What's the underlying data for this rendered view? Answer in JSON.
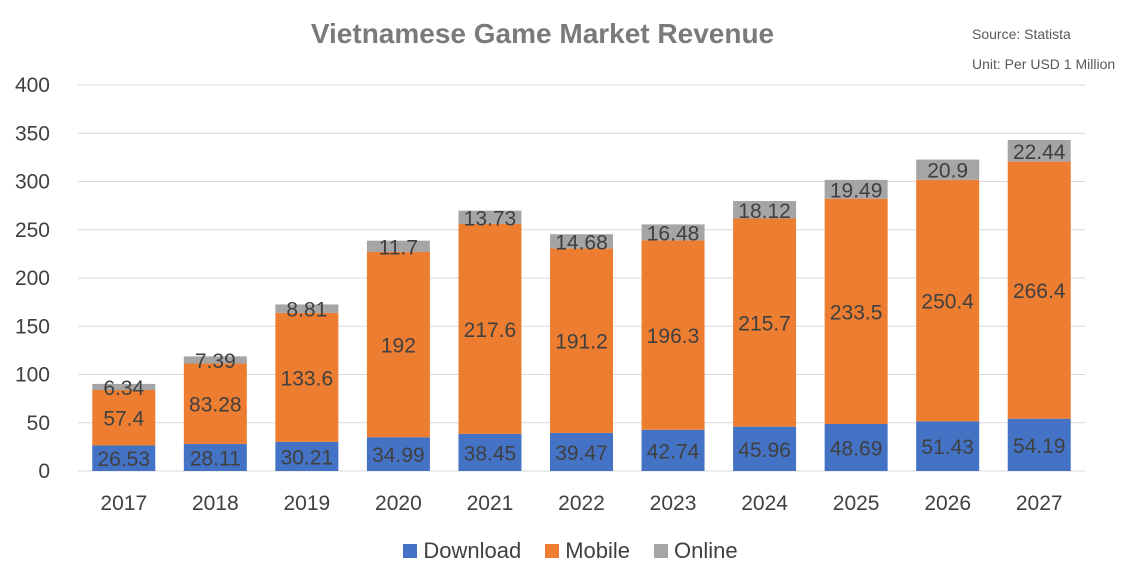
{
  "chart_data": {
    "type": "bar",
    "stacked": true,
    "title": "Vietnamese Game Market Revenue",
    "notes": {
      "source": "Source: Statista",
      "unit": "Unit: Per USD 1 Million"
    },
    "categories": [
      "2017",
      "2018",
      "2019",
      "2020",
      "2021",
      "2022",
      "2023",
      "2024",
      "2025",
      "2026",
      "2027"
    ],
    "series": [
      {
        "name": "Download",
        "color": "#4472c4",
        "values": [
          26.53,
          28.11,
          30.21,
          34.99,
          38.45,
          39.47,
          42.74,
          45.96,
          48.69,
          51.43,
          54.19
        ]
      },
      {
        "name": "Mobile",
        "color": "#ed7d31",
        "values": [
          57.4,
          83.28,
          133.6,
          192,
          217.6,
          191.2,
          196.3,
          215.7,
          233.5,
          250.4,
          266.4
        ]
      },
      {
        "name": "Online",
        "color": "#a5a5a5",
        "values": [
          6.34,
          7.39,
          8.81,
          11.7,
          13.73,
          14.68,
          16.48,
          18.12,
          19.49,
          20.9,
          22.44
        ]
      }
    ],
    "ylim": [
      0,
      400
    ],
    "yticks": [
      0,
      50,
      100,
      150,
      200,
      250,
      300,
      350,
      400
    ],
    "grid": true,
    "legend": "bottom-center",
    "xlabel": "",
    "ylabel": ""
  }
}
